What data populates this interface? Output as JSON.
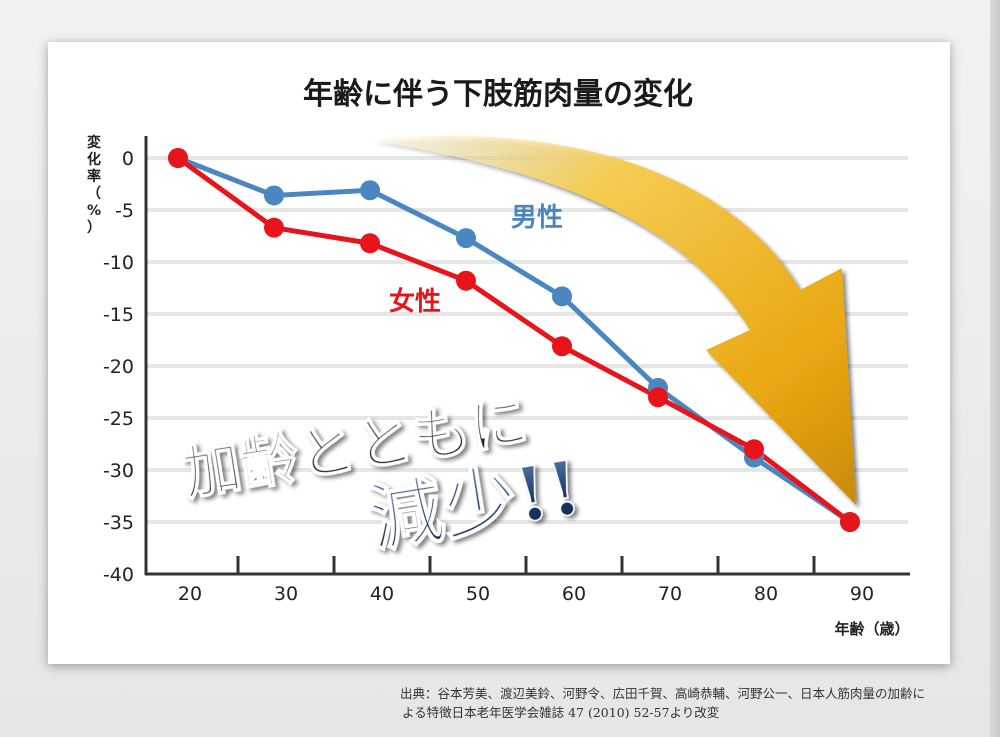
{
  "chart_data": {
    "type": "line",
    "title": "年齢に伴う下肢筋肉量の変化",
    "ylabel_chars": [
      "変",
      "化",
      "率",
      "（",
      "%",
      "）"
    ],
    "xlabel": "年齢（歳）",
    "categories": [
      20,
      30,
      40,
      50,
      60,
      70,
      80,
      90
    ],
    "ylim": [
      -40,
      0
    ],
    "yticks": [
      0,
      -5,
      -10,
      -15,
      -20,
      -25,
      -30,
      -35,
      -40
    ],
    "grid": true,
    "series": [
      {
        "name": "男性",
        "color": "#4a86c0",
        "values": [
          0,
          -3.6,
          -3.1,
          -7.7,
          -13.3,
          -22.1,
          -28.8,
          -35.0
        ]
      },
      {
        "name": "女性",
        "color": "#e8141c",
        "values": [
          0,
          -6.7,
          -8.2,
          -11.8,
          -18.1,
          -23.0,
          -28.0,
          -35.0
        ]
      }
    ],
    "annotation": {
      "line1": "加齢とともに",
      "line2": "減少!!"
    },
    "arrow_color": "#f0b31e"
  },
  "source_note": {
    "line1": "出典：谷本芳美、渡辺美鈴、河野令、広田千賀、高崎恭輔、河野公一、日本人筋肉量の加齢に",
    "line2": "よる特徴日本老年医学会雑誌 47 (2010) 52-57より改変"
  }
}
